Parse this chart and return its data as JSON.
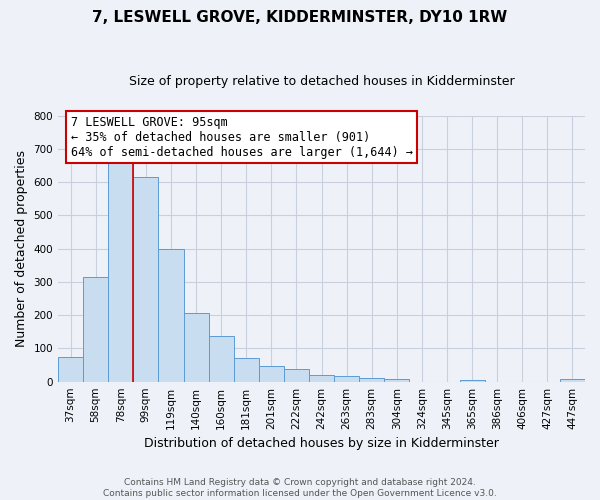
{
  "title": "7, LESWELL GROVE, KIDDERMINSTER, DY10 1RW",
  "subtitle": "Size of property relative to detached houses in Kidderminster",
  "xlabel": "Distribution of detached houses by size in Kidderminster",
  "ylabel": "Number of detached properties",
  "categories": [
    "37sqm",
    "58sqm",
    "78sqm",
    "99sqm",
    "119sqm",
    "140sqm",
    "160sqm",
    "181sqm",
    "201sqm",
    "222sqm",
    "242sqm",
    "263sqm",
    "283sqm",
    "304sqm",
    "324sqm",
    "345sqm",
    "365sqm",
    "386sqm",
    "406sqm",
    "427sqm",
    "447sqm"
  ],
  "values": [
    75,
    315,
    668,
    615,
    400,
    207,
    138,
    70,
    48,
    37,
    20,
    18,
    10,
    7,
    0,
    0,
    5,
    0,
    0,
    0,
    7
  ],
  "bar_color": "#c9ddf0",
  "bar_edge_color": "#5b9bd5",
  "vline_color": "#cc0000",
  "vline_x": 2.5,
  "annotation_text": "7 LESWELL GROVE: 95sqm\n← 35% of detached houses are smaller (901)\n64% of semi-detached houses are larger (1,644) →",
  "annotation_box_color": "#ffffff",
  "annotation_box_edge_color": "#cc0000",
  "ylim": [
    0,
    800
  ],
  "yticks": [
    0,
    100,
    200,
    300,
    400,
    500,
    600,
    700,
    800
  ],
  "footnote": "Contains HM Land Registry data © Crown copyright and database right 2024.\nContains public sector information licensed under the Open Government Licence v3.0.",
  "background_color": "#eef2f8",
  "grid_color": "#c8d0de",
  "title_fontsize": 11,
  "subtitle_fontsize": 9,
  "xlabel_fontsize": 9,
  "ylabel_fontsize": 9,
  "annotation_fontsize": 8.5,
  "footnote_fontsize": 6.5,
  "tick_fontsize": 7.5
}
